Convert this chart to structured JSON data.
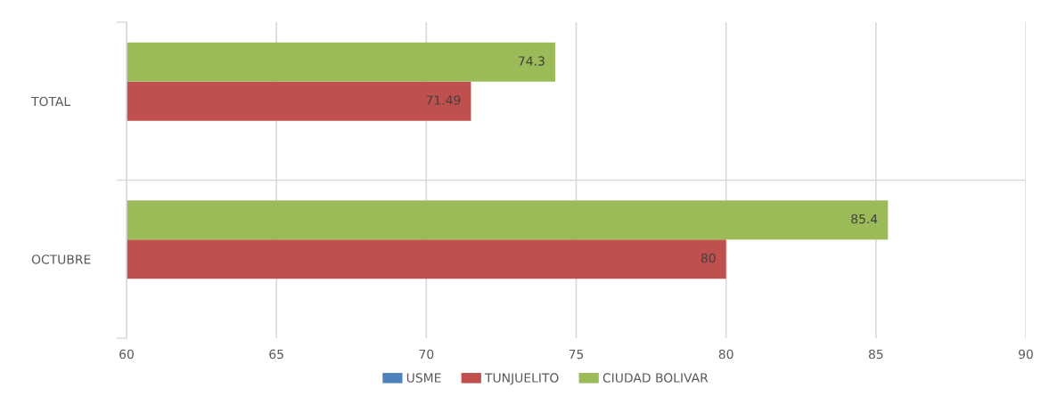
{
  "chart_data": {
    "type": "bar",
    "orientation": "horizontal",
    "categories": [
      "TOTAL",
      "OCTUBRE"
    ],
    "series": [
      {
        "name": "USME",
        "color": "#4f81bd",
        "values": [
          null,
          null
        ]
      },
      {
        "name": "TUNJUELITO",
        "color": "#c0504d",
        "values": [
          71.49,
          80
        ]
      },
      {
        "name": "CIUDAD BOLIVAR",
        "color": "#9bbb59",
        "values": [
          74.3,
          85.4
        ]
      }
    ],
    "xlim": [
      60,
      90
    ],
    "xticks": [
      60,
      65,
      70,
      75,
      80,
      85,
      90
    ],
    "grid": true,
    "legend": "bottom",
    "data_labels": true
  }
}
